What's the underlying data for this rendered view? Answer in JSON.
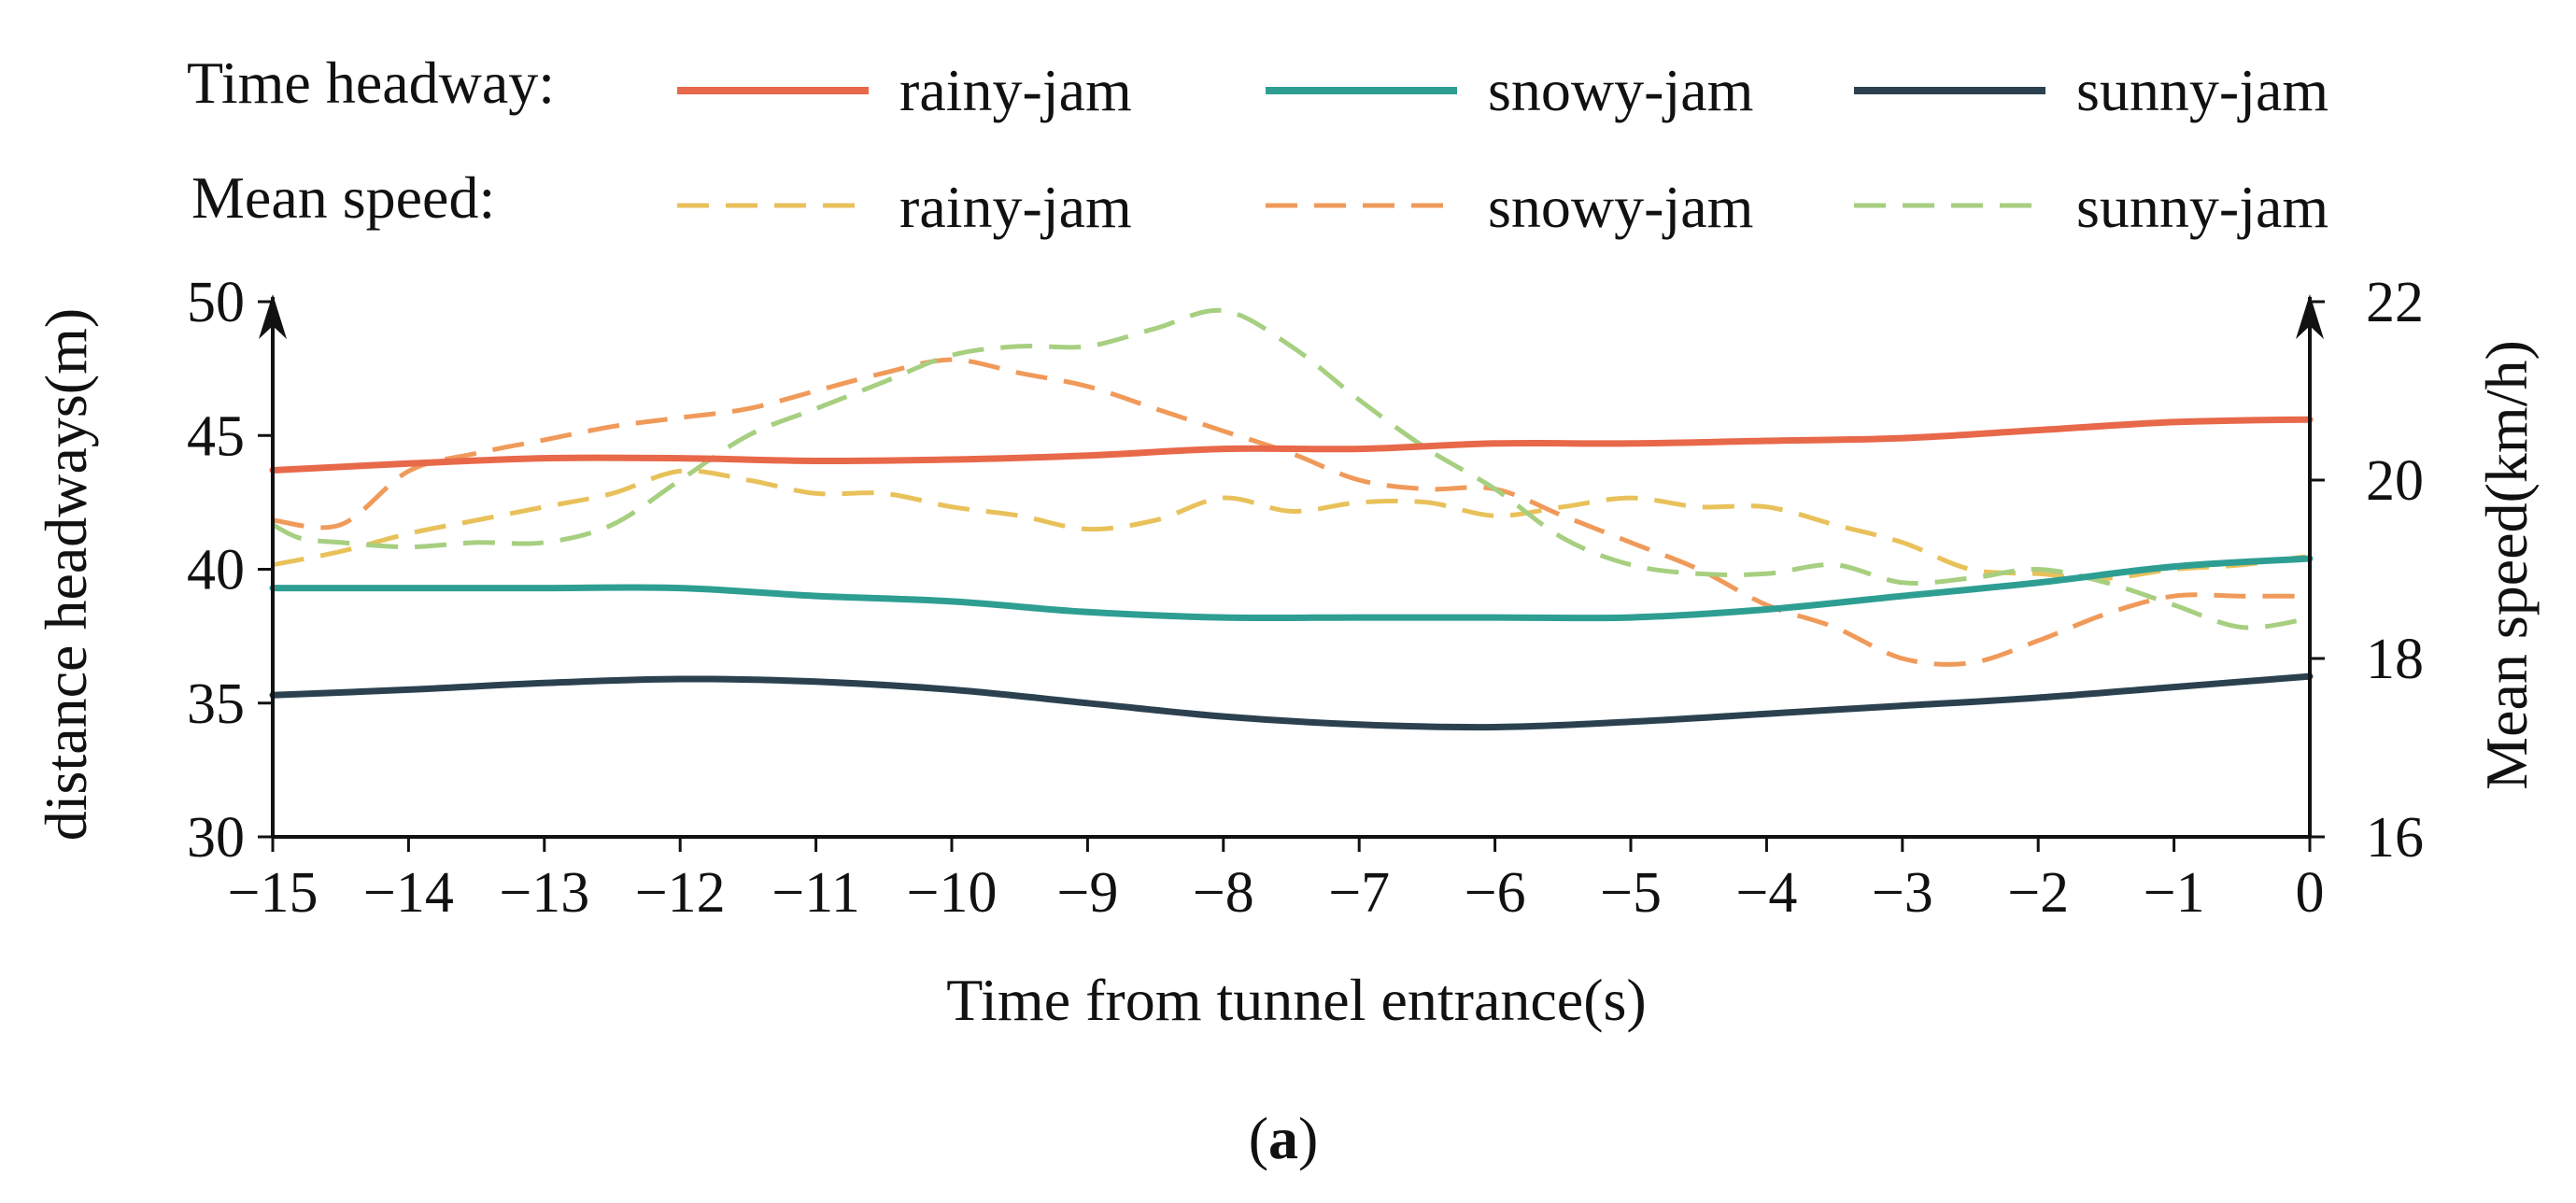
{
  "figure": {
    "caption_open": "(",
    "caption_letter": "a",
    "caption_close": ")"
  },
  "colors": {
    "rainy_headway": "#E8684A",
    "snowy_headway": "#2E9E93",
    "sunny_headway": "#2B4150",
    "rainy_speed": "#E8C15A",
    "snowy_speed": "#F09A5A",
    "sunny_speed": "#A6CF80",
    "axis": "#111111"
  },
  "chart_data": {
    "type": "line",
    "title": "",
    "xlabel": "Time from tunnel entrance(s)",
    "ylabel_left": "distance headways(m)",
    "ylabel_right": "Mean speed(km/h)",
    "xlim": [
      -15,
      0
    ],
    "ylim_left": [
      30,
      50
    ],
    "ylim_right": [
      16,
      22
    ],
    "x_ticks": [
      -15,
      -14,
      -13,
      -12,
      -11,
      -10,
      -9,
      -8,
      -7,
      -6,
      -5,
      -4,
      -3,
      -2,
      -1,
      0
    ],
    "x_tick_labels": [
      "−15",
      "−14",
      "−13",
      "−12",
      "−11",
      "−10",
      "−9",
      "−8",
      "−7",
      "−6",
      "−5",
      "−4",
      "−3",
      "−2",
      "−1",
      "0"
    ],
    "y_left_ticks": [
      30,
      35,
      40,
      45,
      50
    ],
    "y_left_tick_labels": [
      "30",
      "35",
      "40",
      "45",
      "50"
    ],
    "y_right_ticks": [
      16,
      18,
      20,
      22
    ],
    "y_right_tick_labels": [
      "16",
      "18",
      "20",
      "22"
    ],
    "grid": false,
    "legend": {
      "position": "top",
      "group_headway_title": "Time headway:",
      "group_speed_title": "Mean speed:",
      "headway_labels": [
        "rainy-jam",
        "snowy-jam",
        "sunny-jam"
      ],
      "speed_labels": [
        "rainy-jam",
        "snowy-jam",
        "sunny-jam"
      ]
    },
    "series": [
      {
        "name": "rainy-jam",
        "group": "Time headway",
        "axis": "left",
        "style": "solid",
        "color": "#E8684A",
        "x": [
          -15,
          -14,
          -13,
          -12,
          -11,
          -10,
          -9,
          -8,
          -7,
          -6,
          -5,
          -4,
          -3,
          -2,
          -1,
          0
        ],
        "y": [
          43.7,
          43.95,
          44.15,
          44.15,
          44.05,
          44.1,
          44.25,
          44.5,
          44.5,
          44.7,
          44.7,
          44.8,
          44.9,
          45.2,
          45.5,
          45.6
        ]
      },
      {
        "name": "snowy-jam",
        "group": "Time headway",
        "axis": "left",
        "style": "solid",
        "color": "#2E9E93",
        "x": [
          -15,
          -14,
          -13,
          -12,
          -11,
          -10,
          -9,
          -8,
          -7,
          -6,
          -5,
          -4,
          -3,
          -2,
          -1,
          0
        ],
        "y": [
          39.3,
          39.3,
          39.3,
          39.3,
          39.0,
          38.8,
          38.4,
          38.2,
          38.2,
          38.2,
          38.2,
          38.5,
          39.0,
          39.5,
          40.1,
          40.4
        ]
      },
      {
        "name": "sunny-jam",
        "group": "Time headway",
        "axis": "left",
        "style": "solid",
        "color": "#2B4150",
        "x": [
          -15,
          -14,
          -13,
          -12,
          -11,
          -10,
          -9,
          -8,
          -7,
          -6,
          -5,
          -4,
          -3,
          -2,
          -1,
          0
        ],
        "y": [
          35.3,
          35.5,
          35.75,
          35.9,
          35.8,
          35.5,
          35.0,
          34.5,
          34.2,
          34.1,
          34.3,
          34.6,
          34.9,
          35.2,
          35.6,
          36.0
        ]
      },
      {
        "name": "rainy-jam",
        "group": "Mean speed",
        "axis": "right",
        "style": "dashed",
        "color": "#E8C15A",
        "x": [
          -15,
          -14.5,
          -14,
          -13.5,
          -13,
          -12.5,
          -12,
          -11.5,
          -11,
          -10.5,
          -10,
          -9.5,
          -9,
          -8.5,
          -8,
          -7.5,
          -7,
          -6.5,
          -6,
          -5.5,
          -5,
          -4.5,
          -4,
          -3.5,
          -3,
          -2.5,
          -2,
          -1.5,
          -1,
          -0.5,
          0
        ],
        "y": [
          19.05,
          19.2,
          19.4,
          19.55,
          19.7,
          19.85,
          20.1,
          20.0,
          19.85,
          19.85,
          19.7,
          19.6,
          19.45,
          19.55,
          19.8,
          19.65,
          19.75,
          19.75,
          19.6,
          19.7,
          19.8,
          19.7,
          19.7,
          19.5,
          19.3,
          19.0,
          18.95,
          18.9,
          19.0,
          19.05,
          19.15
        ]
      },
      {
        "name": "snowy-jam",
        "group": "Mean speed",
        "axis": "right",
        "style": "dashed",
        "color": "#F09A5A",
        "x": [
          -15,
          -14.5,
          -14,
          -13.5,
          -13,
          -12.5,
          -12,
          -11.5,
          -11,
          -10.5,
          -10,
          -9.5,
          -9,
          -8.5,
          -8,
          -7.5,
          -7,
          -6.5,
          -6,
          -5.5,
          -5,
          -4.5,
          -4,
          -3.5,
          -3,
          -2.5,
          -2,
          -1.5,
          -1,
          -0.5,
          0
        ],
        "y": [
          19.55,
          19.5,
          20.1,
          20.3,
          20.45,
          20.6,
          20.7,
          20.8,
          21.0,
          21.2,
          21.35,
          21.2,
          21.05,
          20.8,
          20.55,
          20.3,
          20.0,
          19.9,
          19.9,
          19.6,
          19.3,
          19.0,
          18.6,
          18.35,
          18.0,
          17.95,
          18.2,
          18.5,
          18.7,
          18.7,
          18.7
        ]
      },
      {
        "name": "sunny-jam",
        "group": "Mean speed",
        "axis": "right",
        "style": "dashed",
        "color": "#A6CF80",
        "x": [
          -15,
          -14.8,
          -14.5,
          -14,
          -13.5,
          -13,
          -12.5,
          -12,
          -11.5,
          -11,
          -10.5,
          -10,
          -9.5,
          -9,
          -8.5,
          -8,
          -7.5,
          -7,
          -6.5,
          -6,
          -5.5,
          -5,
          -4.5,
          -4,
          -3.5,
          -3,
          -2.5,
          -2,
          -1.5,
          -1,
          -0.5,
          0
        ],
        "y": [
          19.5,
          19.35,
          19.3,
          19.25,
          19.3,
          19.3,
          19.5,
          20.0,
          20.5,
          20.8,
          21.1,
          21.4,
          21.5,
          21.5,
          21.7,
          21.9,
          21.5,
          20.9,
          20.35,
          19.9,
          19.35,
          19.05,
          18.95,
          18.95,
          19.05,
          18.85,
          18.9,
          19.0,
          18.85,
          18.6,
          18.35,
          18.45
        ]
      }
    ]
  }
}
